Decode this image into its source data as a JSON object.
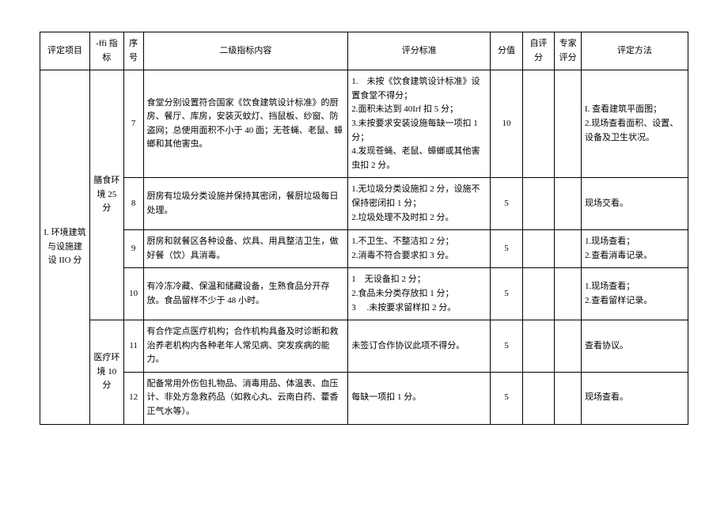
{
  "headers": {
    "pingding": "评定项目",
    "zhibiao": "-ffi 指标",
    "xuhao": "序号",
    "neirong": "二级指标内容",
    "biaozhun": "评分标准",
    "fenzhi": "分值",
    "ziping": "自评分",
    "zhuanjia": "专家评分",
    "fangfa": "评定方法"
  },
  "categoryA": "I. 环境建筑与设施建设 IIO 分",
  "subcatA": "膳食环境 25 分",
  "subcatB": "医疗环境 10 分",
  "rows": [
    {
      "xuhao": "7",
      "neirong": "食堂分别设置符合国家《饮食建筑设计标准》的厨房、餐厅、库房，安装灭蚊灯、挡鼠板、纱窗、防盗网；总使用面积不小于 40 面；无苍蝇、老鼠、蟑螂和其他害虫。",
      "biaozhun": "1. 未按《饮食建筑设计标准》设置食堂不得分；\n2.面积未达到 40Irf 扣 5 分；\n3.未按要求安装设施每缺一项扣 1 分；\n4.发现苍蝇、老鼠、蟑螂或其他害虫扣 2 分。",
      "fenzhi": "10",
      "fangfa": "I. 查看建筑平面图；\n2.现场查看面积、设置、设备及卫生状况。"
    },
    {
      "xuhao": "8",
      "neirong": "厨房有垃圾分类设施并保持其密闭，餐厨垃圾每日处理。",
      "biaozhun": "1.无垃圾分类设施扣 2 分，设施不保持密闭扣 1 分；\n2.垃圾处理不及时扣 2 分。",
      "fenzhi": "5",
      "fangfa": "现场交看。"
    },
    {
      "xuhao": "9",
      "neirong": "厨房和就餐区各种设备、炊具、用具整洁卫生，做好餐（饮）具消毒。",
      "biaozhun": "1.不卫生、不整洁扣 2 分；\n2.消毒不符合要求扣 3 分。",
      "fenzhi": "5",
      "fangfa": "1.现场查看；\n2.查看消毒记录。"
    },
    {
      "xuhao": "10",
      "neirong": "有冷冻冷藏、保温和储藏设备，生熟食品分开存放。食品留样不少于 48 小时。",
      "biaozhun": "1 无设备扣 2 分；\n2.食品未分类存放扣 1 分；\n3  .未按要求留样扣 2 分。",
      "fenzhi": "5",
      "fangfa": "1.现场查看；\n2.查看留样记录。"
    },
    {
      "xuhao": "11",
      "neirong": "有合作定点医疗机构；合作机构具备及时诊断和救治养老机构内各种老年人常见病、突发疾病的能力。",
      "biaozhun": "未签订合作协议此项不得分。",
      "fenzhi": "5",
      "fangfa": "查看协议。"
    },
    {
      "xuhao": "12",
      "neirong": "配备常用外伤包扎物品、消毒用品、体温表、血压计、非处方急救药品（如救心丸、云南白药、藿香正气水等）。",
      "biaozhun": "每缺一项扣 1 分。",
      "fenzhi": "5",
      "fangfa": "现场查看。"
    }
  ]
}
